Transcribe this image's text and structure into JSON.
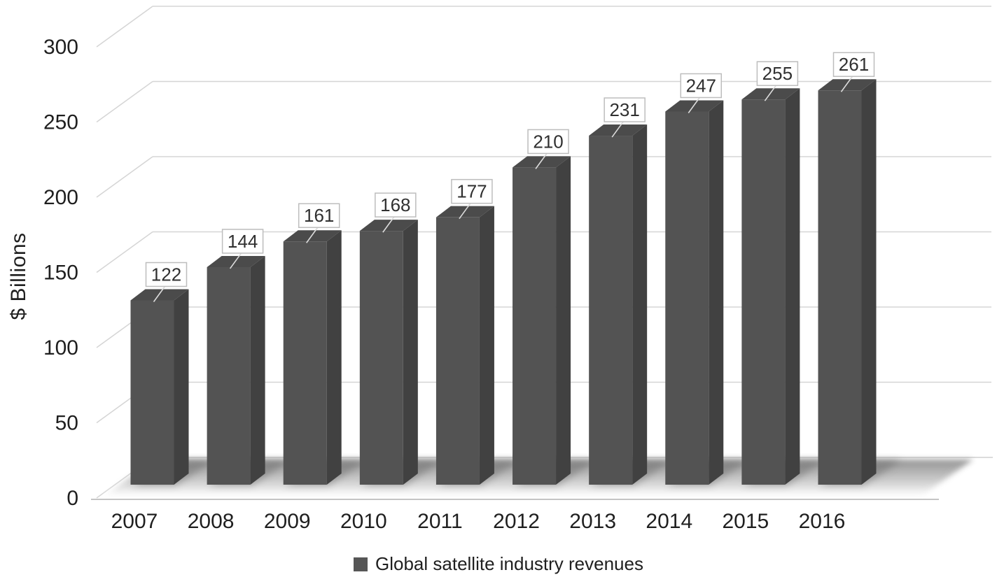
{
  "chart_data": {
    "type": "bar",
    "style": "3d-column",
    "title": "",
    "categories": [
      "2007",
      "2008",
      "2009",
      "2010",
      "2011",
      "2012",
      "2013",
      "2014",
      "2015",
      "2016"
    ],
    "series": [
      {
        "name": "Global satellite industry revenues",
        "values": [
          122,
          144,
          161,
          168,
          177,
          210,
          231,
          247,
          255,
          261
        ]
      }
    ],
    "data_labels_visible": true,
    "xlabel": "",
    "ylabel": "$ Billions",
    "y_ticks": [
      0,
      50,
      100,
      150,
      200,
      250,
      300
    ],
    "ylim": [
      0,
      300
    ],
    "grid": true,
    "legend_position": "bottom"
  },
  "legend": {
    "items": [
      {
        "label": "Global satellite industry revenues",
        "marker": "square",
        "color": "#565656"
      }
    ]
  },
  "colors": {
    "bar_front": "#535353",
    "bar_top": "#4b4b4b",
    "bar_side": "#414141",
    "gridline": "#d5d5d5",
    "axis_line": "#c4c4c4",
    "floor_back_line": "#d0d0d0",
    "tick_text": "#1f1f1f",
    "data_label_text": "#303030",
    "data_label_box_fill": "#ffffff",
    "data_label_box_border": "#bdbdbd",
    "callout_line": "#dcdcdc",
    "shadow": "#6b6b6b"
  }
}
